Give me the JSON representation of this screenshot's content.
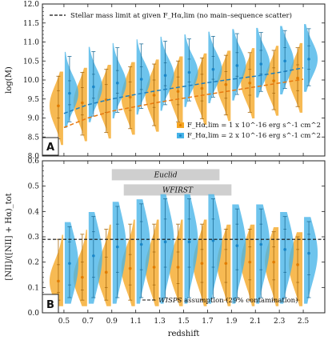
{
  "chart_data": [
    {
      "panel": "A",
      "type": "violin",
      "xlabel": "",
      "ylabel": "log(M)",
      "ylim": [
        8.0,
        12.0
      ],
      "yticks": [
        "8.0",
        "8.5",
        "9.0",
        "9.5",
        "10.0",
        "10.5",
        "11.0",
        "11.5",
        "12.0"
      ],
      "x": [
        0.5,
        0.7,
        0.9,
        1.1,
        1.3,
        1.5,
        1.7,
        1.9,
        2.1,
        2.3,
        2.5
      ],
      "legend": {
        "placement": "bottom-right",
        "entries": [
          "F_Hα,lim = 1 x 10^-16 erg s^-1 cm^2",
          "F_Hα,lim = 2 x 10^-16 erg s^-1 cm^2"
        ]
      },
      "reference_line_label": "Stellar mass limit at given F_Hα,lim (no main–sequence scatter)",
      "series": [
        {
          "name": "F_Hα,lim = 1 x 10^-16 erg s^-1 cm^2",
          "color": "#f5a623",
          "median": [
            9.32,
            9.4,
            9.48,
            9.55,
            9.6,
            9.7,
            9.78,
            9.88,
            9.92,
            9.98,
            10.05
          ],
          "q_low": [
            9.0,
            9.08,
            9.15,
            9.2,
            9.28,
            9.35,
            9.45,
            9.52,
            9.6,
            9.65,
            9.72
          ],
          "q_high": [
            9.72,
            9.8,
            9.88,
            9.95,
            10.0,
            10.08,
            10.15,
            10.22,
            10.28,
            10.32,
            10.4
          ],
          "whisker_low": [
            8.45,
            8.55,
            8.62,
            8.72,
            8.8,
            8.9,
            8.98,
            9.08,
            9.15,
            9.22,
            9.3
          ],
          "whisker_high": [
            10.1,
            10.2,
            10.28,
            10.35,
            10.42,
            10.5,
            10.58,
            10.65,
            10.72,
            10.78,
            10.85
          ],
          "limit_curve": [
            8.75,
            9.0,
            9.18,
            9.3,
            9.42,
            9.52,
            9.62,
            9.72,
            9.82,
            9.92,
            10.02
          ]
        },
        {
          "name": "F_Hα,lim = 2 x 10^-16 erg s^-1 cm^2",
          "color": "#45b3e8",
          "median": [
            9.65,
            9.82,
            9.92,
            10.02,
            10.12,
            10.2,
            10.28,
            10.38,
            10.42,
            10.5,
            10.55
          ],
          "q_low": [
            9.35,
            9.52,
            9.65,
            9.75,
            9.85,
            9.95,
            10.02,
            10.1,
            10.16,
            10.22,
            10.28
          ],
          "q_high": [
            9.98,
            10.15,
            10.25,
            10.35,
            10.45,
            10.55,
            10.62,
            10.72,
            10.78,
            10.85,
            10.9
          ],
          "whisker_low": [
            8.9,
            9.05,
            9.15,
            9.25,
            9.35,
            9.45,
            9.55,
            9.62,
            9.7,
            9.78,
            9.85
          ],
          "whisker_high": [
            10.62,
            10.75,
            10.85,
            10.95,
            11.02,
            11.08,
            11.15,
            11.22,
            11.25,
            11.3,
            11.35
          ],
          "limit_curve": [
            9.12,
            9.35,
            9.5,
            9.62,
            9.73,
            9.83,
            9.93,
            10.02,
            10.1,
            10.2,
            10.32
          ]
        }
      ]
    },
    {
      "panel": "B",
      "type": "violin",
      "xlabel": "redshift",
      "ylabel": "[NII]/([NII] + Hα)_tot",
      "ylim": [
        0.0,
        0.6
      ],
      "yticks": [
        "0.0",
        "0.1",
        "0.2",
        "0.3",
        "0.4",
        "0.5",
        "0.6"
      ],
      "x": [
        0.5,
        0.7,
        0.9,
        1.1,
        1.3,
        1.5,
        1.7,
        1.9,
        2.1,
        2.3,
        2.5
      ],
      "xticks": [
        "0.5",
        "0.7",
        "0.9",
        "1.1",
        "1.3",
        "1.5",
        "1.7",
        "1.9",
        "2.1",
        "2.3",
        "2.5"
      ],
      "hline": {
        "value": 0.29,
        "label_italic": "WISPS",
        "label_rest": " assumption (29% contamination)"
      },
      "bands": [
        {
          "label": "Euclid",
          "z_range": [
            0.9,
            1.8
          ],
          "y": 0.545
        },
        {
          "label": "WFIRST",
          "z_range": [
            1.0,
            1.9
          ],
          "y": 0.485
        }
      ],
      "series": [
        {
          "name": "F_Hα,lim = 1 x 10^-16 erg s^-1 cm^2",
          "color": "#f5a623",
          "median": [
            0.125,
            0.14,
            0.16,
            0.175,
            0.18,
            0.18,
            0.195,
            0.195,
            0.2,
            0.2,
            0.19
          ],
          "q_low": [
            0.08,
            0.09,
            0.1,
            0.11,
            0.11,
            0.115,
            0.12,
            0.12,
            0.13,
            0.13,
            0.12
          ],
          "q_high": [
            0.19,
            0.2,
            0.22,
            0.23,
            0.24,
            0.24,
            0.25,
            0.25,
            0.26,
            0.26,
            0.25
          ],
          "whisker_low": [
            0.05,
            0.05,
            0.05,
            0.05,
            0.05,
            0.05,
            0.05,
            0.05,
            0.05,
            0.05,
            0.05
          ],
          "whisker_high": [
            0.29,
            0.31,
            0.33,
            0.35,
            0.35,
            0.35,
            0.35,
            0.33,
            0.33,
            0.32,
            0.3
          ]
        },
        {
          "name": "F_Hα,lim = 2 x 10^-16 erg s^-1 cm^2",
          "color": "#45b3e8",
          "median": [
            0.195,
            0.225,
            0.26,
            0.27,
            0.28,
            0.28,
            0.285,
            0.265,
            0.27,
            0.25,
            0.235
          ],
          "q_low": [
            0.11,
            0.14,
            0.16,
            0.17,
            0.18,
            0.18,
            0.18,
            0.17,
            0.17,
            0.16,
            0.15
          ],
          "q_high": [
            0.28,
            0.32,
            0.35,
            0.36,
            0.37,
            0.37,
            0.37,
            0.35,
            0.35,
            0.33,
            0.31
          ],
          "whisker_low": [
            0.06,
            0.06,
            0.06,
            0.06,
            0.06,
            0.06,
            0.06,
            0.06,
            0.06,
            0.06,
            0.06
          ],
          "whisker_high": [
            0.34,
            0.38,
            0.42,
            0.43,
            0.45,
            0.45,
            0.45,
            0.41,
            0.41,
            0.38,
            0.36
          ]
        }
      ]
    }
  ]
}
